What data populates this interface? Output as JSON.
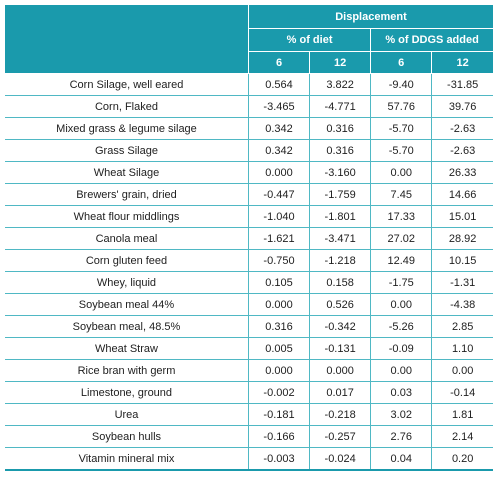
{
  "header": {
    "group_label": "Displacement",
    "subgroups": [
      "% of diet",
      "% of DDGS added"
    ],
    "levels": [
      "6",
      "12",
      "6",
      "12"
    ]
  },
  "rows": [
    {
      "name": "Corn Silage, well eared",
      "values": [
        "0.564",
        "3.822",
        "-9.40",
        "-31.85"
      ]
    },
    {
      "name": "Corn, Flaked",
      "values": [
        "-3.465",
        "-4.771",
        "57.76",
        "39.76"
      ]
    },
    {
      "name": "Mixed grass & legume silage",
      "values": [
        "0.342",
        "0.316",
        "-5.70",
        "-2.63"
      ]
    },
    {
      "name": "Grass Silage",
      "values": [
        "0.342",
        "0.316",
        "-5.70",
        "-2.63"
      ]
    },
    {
      "name": "Wheat Silage",
      "values": [
        "0.000",
        "-3.160",
        "0.00",
        "26.33"
      ]
    },
    {
      "name": "Brewers' grain, dried",
      "values": [
        "-0.447",
        "-1.759",
        "7.45",
        "14.66"
      ]
    },
    {
      "name": "Wheat flour middlings",
      "values": [
        "-1.040",
        "-1.801",
        "17.33",
        "15.01"
      ]
    },
    {
      "name": "Canola meal",
      "values": [
        "-1.621",
        "-3.471",
        "27.02",
        "28.92"
      ]
    },
    {
      "name": "Corn gluten feed",
      "values": [
        "-0.750",
        "-1.218",
        "12.49",
        "10.15"
      ]
    },
    {
      "name": "Whey, liquid",
      "values": [
        "0.105",
        "0.158",
        "-1.75",
        "-1.31"
      ]
    },
    {
      "name": "Soybean meal 44%",
      "values": [
        "0.000",
        "0.526",
        "0.00",
        "-4.38"
      ]
    },
    {
      "name": "Soybean meal, 48.5%",
      "values": [
        "0.316",
        "-0.342",
        "-5.26",
        "2.85"
      ]
    },
    {
      "name": "Wheat Straw",
      "values": [
        "0.005",
        "-0.131",
        "-0.09",
        "1.10"
      ]
    },
    {
      "name": "Rice bran with germ",
      "values": [
        "0.000",
        "0.000",
        "0.00",
        "0.00"
      ]
    },
    {
      "name": "Limestone, ground",
      "values": [
        "-0.002",
        "0.017",
        "0.03",
        "-0.14"
      ]
    },
    {
      "name": "Urea",
      "values": [
        "-0.181",
        "-0.218",
        "3.02",
        "1.81"
      ]
    },
    {
      "name": "Soybean hulls",
      "values": [
        "-0.166",
        "-0.257",
        "2.76",
        "2.14"
      ]
    },
    {
      "name": "Vitamin mineral mix",
      "values": [
        "-0.003",
        "-0.024",
        "0.04",
        "0.20"
      ]
    }
  ],
  "colors": {
    "header_bg": "#1a9aac",
    "header_text": "#ffffff",
    "grid_line": "#4fb8c4"
  }
}
